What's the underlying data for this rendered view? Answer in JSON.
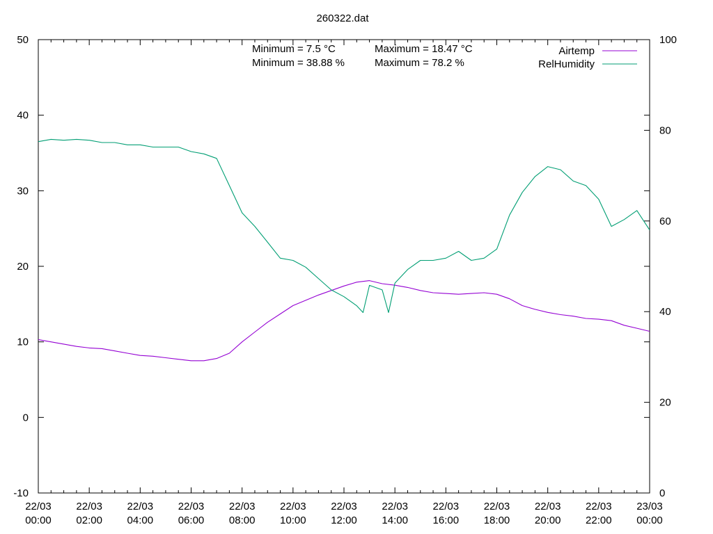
{
  "chart_data": {
    "type": "line",
    "title": "260322.dat",
    "x_ticks": [
      "22/03\n00:00",
      "22/03\n02:00",
      "22/03\n04:00",
      "22/03\n06:00",
      "22/03\n08:00",
      "22/03\n10:00",
      "22/03\n12:00",
      "22/03\n14:00",
      "22/03\n16:00",
      "22/03\n18:00",
      "22/03\n20:00",
      "22/03\n22:00",
      "23/03\n00:00"
    ],
    "xlim": [
      "22/03 00:00",
      "23/03 00:00"
    ],
    "y_left": {
      "ylim": [
        -10,
        50
      ],
      "ticks": [
        -10,
        0,
        10,
        20,
        30,
        40,
        50
      ]
    },
    "y_right": {
      "ylim": [
        0,
        100
      ],
      "ticks": [
        0,
        20,
        40,
        60,
        80,
        100
      ]
    },
    "annotations": [
      "Minimum = 7.5 °C",
      "Maximum = 18.47 °C",
      "Minimum = 38.88 %",
      "Maximum = 78.2 %"
    ],
    "legend_position": "top-right",
    "grid": false,
    "series": [
      {
        "name": "Airtemp",
        "axis": "left",
        "color": "#9400d3",
        "x_hours": [
          0,
          0.5,
          1,
          1.5,
          2,
          2.5,
          3,
          3.5,
          4,
          4.5,
          5,
          5.5,
          6,
          6.5,
          7,
          7.5,
          8,
          8.5,
          9,
          9.5,
          10,
          10.5,
          11,
          11.5,
          12,
          12.5,
          13,
          13.5,
          14,
          14.5,
          15,
          15.5,
          16,
          16.5,
          17,
          17.5,
          18,
          18.5,
          19,
          19.5,
          20,
          20.5,
          21,
          21.5,
          22,
          22.5,
          23,
          23.5,
          24
        ],
        "values": [
          10.3,
          10.0,
          9.7,
          9.4,
          9.2,
          9.1,
          8.8,
          8.5,
          8.2,
          8.1,
          7.9,
          7.7,
          7.5,
          7.5,
          7.8,
          8.5,
          10.0,
          11.3,
          12.6,
          13.7,
          14.8,
          15.5,
          16.2,
          16.8,
          17.4,
          17.9,
          18.1,
          17.7,
          17.5,
          17.2,
          16.8,
          16.5,
          16.4,
          16.3,
          16.4,
          16.5,
          16.3,
          15.7,
          14.8,
          14.3,
          13.9,
          13.6,
          13.4,
          13.1,
          13.0,
          12.8,
          12.2,
          11.8,
          11.4
        ]
      },
      {
        "name": "RelHumidity",
        "axis": "right",
        "color": "#009e73",
        "x_hours": [
          0,
          0.5,
          1,
          1.5,
          2,
          2.5,
          3,
          3.5,
          4,
          4.5,
          5,
          5.5,
          6,
          6.5,
          7,
          7.5,
          8,
          8.5,
          9,
          9.5,
          10,
          10.5,
          11,
          11.5,
          12,
          12.5,
          12.75,
          13,
          13.5,
          13.75,
          14,
          14.5,
          15,
          15.5,
          16,
          16.5,
          17,
          17.5,
          18,
          18.5,
          19,
          19.5,
          20,
          20.5,
          21,
          21.5,
          22,
          22.5,
          23,
          23.5,
          24
        ],
        "values": [
          77.5,
          78.0,
          77.8,
          78.0,
          77.8,
          77.3,
          77.3,
          76.8,
          76.8,
          76.3,
          76.3,
          76.3,
          75.3,
          74.8,
          73.8,
          67.8,
          61.8,
          58.8,
          55.3,
          51.8,
          51.3,
          49.8,
          47.3,
          44.8,
          43.3,
          41.3,
          39.8,
          45.8,
          44.8,
          39.8,
          46.3,
          49.3,
          51.3,
          51.3,
          51.8,
          53.3,
          51.3,
          51.8,
          53.8,
          61.3,
          66.3,
          69.8,
          72.0,
          71.3,
          68.8,
          67.8,
          64.8,
          58.8,
          60.3,
          62.3,
          58.0
        ]
      }
    ]
  }
}
